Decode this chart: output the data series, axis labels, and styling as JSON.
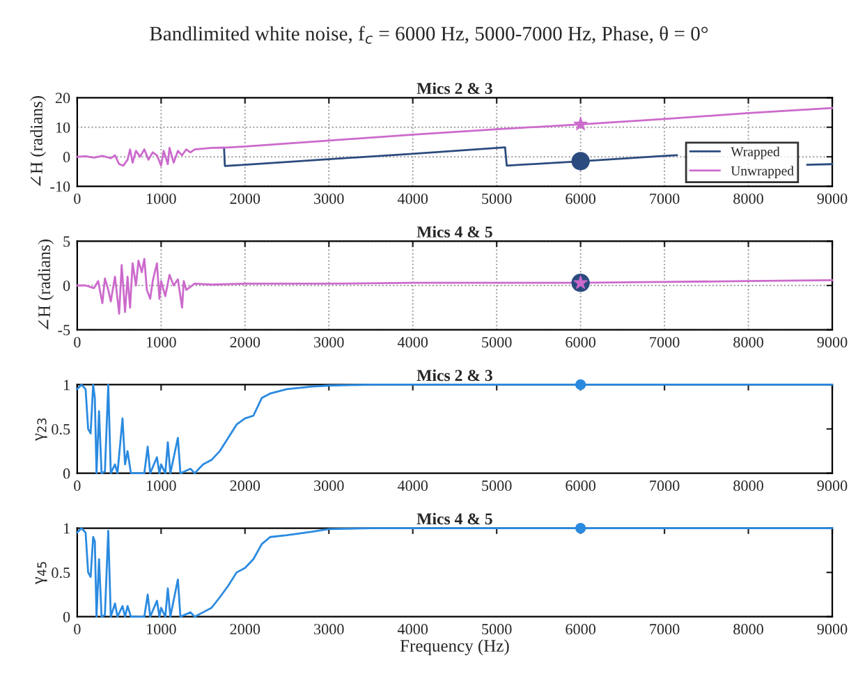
{
  "chart_data": [
    {
      "type": "line",
      "annotations": [
        "Bandlimited white noise, f$_{c}$ = 6000 Hz, 5000-7000 Hz, Phase, θ = 0°"
      ],
      "title": "Mics 2 & 3",
      "ylabel": "∠H (radians)",
      "xlim": [
        0,
        9000
      ],
      "xticks": [
        0,
        1000,
        2000,
        3000,
        4000,
        5000,
        6000,
        7000,
        8000,
        9000
      ],
      "ylim": [
        -10,
        20
      ],
      "yticks": [
        -10,
        0,
        10,
        20
      ],
      "grid": true,
      "legend": "lower right",
      "series": [
        {
          "name": "Wrapped",
          "color": "#2b4b7e",
          "x": [
            1750,
            1760,
            2000,
            3000,
            4000,
            5100,
            5120,
            6000,
            7000,
            7150,
            7151,
            8700,
            9000
          ],
          "values": [
            3.1,
            -3.1,
            -2.7,
            -0.8,
            1,
            3.2,
            -3,
            -1.5,
            0.3,
            0.55,
            null,
            -2.7,
            -2.5
          ]
        },
        {
          "name": "Unwrapped",
          "color": "#cc6acc",
          "x": [
            0,
            100,
            200,
            300,
            400,
            450,
            500,
            550,
            600,
            630,
            660,
            700,
            750,
            800,
            850,
            900,
            950,
            1000,
            1030,
            1080,
            1100,
            1150,
            1200,
            1250,
            1300,
            1350,
            1400,
            1600,
            1750,
            2000,
            3000,
            4000,
            5000,
            6000,
            7000,
            8000,
            9000
          ],
          "values": [
            0,
            0.2,
            -0.3,
            0.3,
            -0.5,
            0.5,
            -2.5,
            -3,
            -1,
            2.5,
            -2,
            2,
            0,
            2.5,
            -1,
            1.5,
            0.5,
            -3,
            2,
            -2.5,
            3,
            -2,
            2,
            0.5,
            2.5,
            1.5,
            2.5,
            3,
            3.1,
            3.5,
            5.5,
            7.5,
            9.3,
            11,
            12.8,
            14.8,
            16.5
          ]
        },
        {
          "type": "scatter",
          "marker": "circle",
          "color": "#2b4b7e",
          "x": [
            6000
          ],
          "values": [
            -1.5
          ]
        },
        {
          "type": "scatter",
          "marker": "star",
          "color": "#cc6acc",
          "x": [
            6000
          ],
          "values": [
            11
          ]
        }
      ]
    },
    {
      "type": "line",
      "title": "Mics 4 & 5",
      "ylabel": "∠H (radians)",
      "xlim": [
        0,
        9000
      ],
      "xticks": [
        0,
        1000,
        2000,
        3000,
        4000,
        5000,
        6000,
        7000,
        8000,
        9000
      ],
      "ylim": [
        -5,
        5
      ],
      "yticks": [
        -5,
        0,
        5
      ],
      "grid": true,
      "series": [
        {
          "color": "#cc6acc",
          "x": [
            0,
            100,
            200,
            250,
            300,
            330,
            370,
            400,
            450,
            500,
            530,
            570,
            600,
            630,
            660,
            700,
            730,
            770,
            800,
            830,
            870,
            900,
            950,
            980,
            1000,
            1050,
            1100,
            1150,
            1200,
            1250,
            1270,
            1300,
            1400,
            1600,
            2000,
            3000,
            4000,
            5000,
            6000,
            7000,
            8000,
            9000
          ],
          "values": [
            0,
            0,
            -0.3,
            0.5,
            -2,
            0.8,
            -0.5,
            -1.8,
            1,
            -3.2,
            2.3,
            -3,
            1,
            -2.5,
            2.5,
            0,
            2.8,
            1.5,
            3,
            -0.5,
            -1.5,
            0.5,
            2.5,
            -1.5,
            0.5,
            -1.2,
            1.2,
            0,
            0.7,
            -2.5,
            0.5,
            -0.5,
            0.2,
            0.1,
            0.2,
            0.2,
            0.3,
            0.3,
            0.3,
            0.4,
            0.5,
            0.6
          ]
        },
        {
          "type": "scatter",
          "marker": "circle",
          "color": "#2b4b7e",
          "x": [
            6000
          ],
          "values": [
            0.3
          ]
        },
        {
          "type": "scatter",
          "marker": "star",
          "color": "#cc6acc",
          "x": [
            6000
          ],
          "values": [
            0.3
          ]
        }
      ]
    },
    {
      "type": "line",
      "title": "Mics 2 & 3",
      "ylabel": "γ$_{23}$",
      "xlim": [
        0,
        9000
      ],
      "xticks": [
        0,
        1000,
        2000,
        3000,
        4000,
        5000,
        6000,
        7000,
        8000,
        9000
      ],
      "ylim": [
        0,
        1
      ],
      "yticks": [
        0,
        0.5,
        1
      ],
      "grid": false,
      "series": [
        {
          "color": "#2a8ae0",
          "x": [
            0,
            50,
            100,
            130,
            160,
            190,
            210,
            230,
            260,
            290,
            330,
            370,
            400,
            450,
            480,
            540,
            570,
            600,
            640,
            800,
            840,
            870,
            950,
            980,
            1000,
            1050,
            1080,
            1110,
            1200,
            1230,
            1350,
            1400,
            1500,
            1600,
            1700,
            1800,
            1900,
            2000,
            2100,
            2200,
            2300,
            2500,
            2800,
            3000,
            3500,
            9000
          ],
          "values": [
            0.95,
            1,
            0.95,
            0.5,
            0.45,
            1,
            0.85,
            0,
            0.7,
            0,
            0.02,
            1,
            0,
            0.1,
            0,
            0.62,
            0.1,
            0.25,
            0,
            0,
            0.3,
            0,
            0.18,
            0,
            0.1,
            0,
            0.35,
            0,
            0.4,
            0,
            0.05,
            0,
            0.1,
            0.15,
            0.25,
            0.4,
            0.55,
            0.62,
            0.65,
            0.85,
            0.9,
            0.95,
            0.98,
            0.99,
            1,
            1
          ]
        },
        {
          "type": "scatter",
          "marker": "circle",
          "color": "#2a8ae0",
          "x": [
            6000
          ],
          "values": [
            1
          ]
        }
      ]
    },
    {
      "type": "line",
      "title": "Mics 4 & 5",
      "ylabel": "γ$_{45}$",
      "xlabel": "Frequency (Hz)",
      "xlim": [
        0,
        9000
      ],
      "xticks": [
        0,
        1000,
        2000,
        3000,
        4000,
        5000,
        6000,
        7000,
        8000,
        9000
      ],
      "ylim": [
        0,
        1
      ],
      "yticks": [
        0,
        0.5,
        1
      ],
      "grid": false,
      "series": [
        {
          "color": "#2a8ae0",
          "x": [
            0,
            50,
            100,
            130,
            160,
            190,
            210,
            230,
            260,
            290,
            330,
            370,
            400,
            450,
            480,
            540,
            570,
            600,
            640,
            800,
            840,
            870,
            950,
            980,
            1000,
            1050,
            1080,
            1110,
            1200,
            1230,
            1350,
            1400,
            1500,
            1600,
            1700,
            1800,
            1900,
            2000,
            2100,
            2200,
            2300,
            2500,
            2800,
            3000,
            3500,
            9000
          ],
          "values": [
            0.95,
            1,
            0.95,
            0.5,
            0.45,
            0.9,
            0.85,
            0,
            0.65,
            0,
            0.02,
            0.97,
            0,
            0.15,
            0,
            0.12,
            0,
            0.12,
            0,
            0,
            0.25,
            0,
            0.18,
            0,
            0.1,
            0,
            0.32,
            0,
            0.42,
            0,
            0.05,
            0,
            0.05,
            0.1,
            0.22,
            0.35,
            0.5,
            0.55,
            0.65,
            0.82,
            0.9,
            0.92,
            0.96,
            0.99,
            1,
            1
          ]
        },
        {
          "type": "scatter",
          "marker": "circle",
          "color": "#2a8ae0",
          "x": [
            6000
          ],
          "values": [
            1
          ]
        }
      ]
    }
  ]
}
